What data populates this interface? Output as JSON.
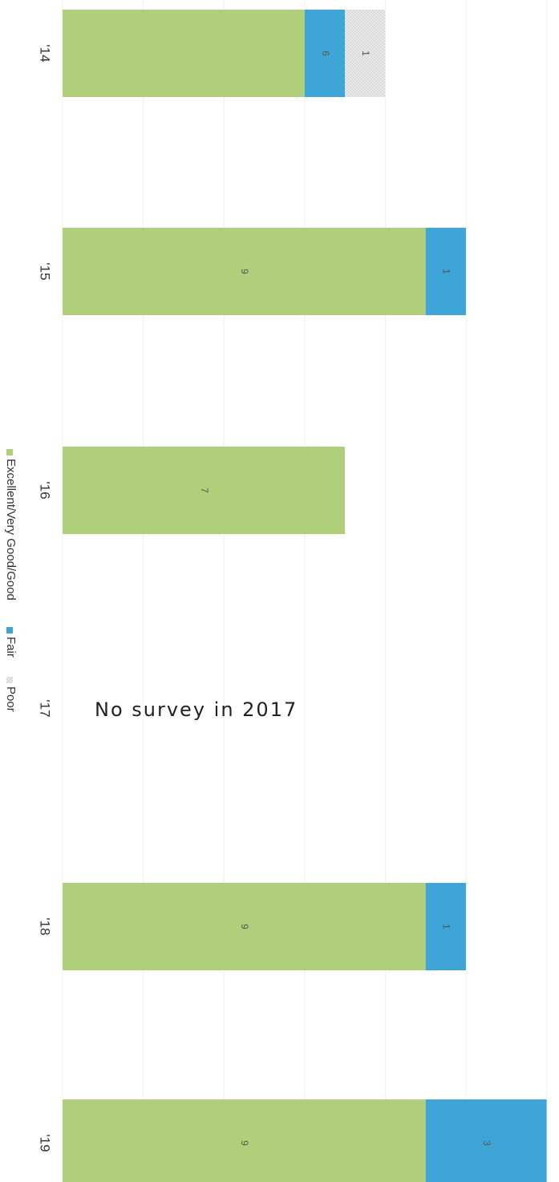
{
  "chart_data": {
    "type": "bar",
    "orientation": "horizontal",
    "stacked": true,
    "rotated": "page rotated 90 degrees clockwise",
    "categories": [
      "'14",
      "'15",
      "'16",
      "'17",
      "'18",
      "'19"
    ],
    "series": [
      {
        "name": "Excellent/Very Good/Good",
        "color": "#b0cf7a",
        "values": [
          6,
          9,
          7,
          null,
          9,
          9
        ]
      },
      {
        "name": "Fair",
        "color": "#3fa5d6",
        "values": [
          1,
          1,
          null,
          null,
          1,
          3
        ]
      },
      {
        "name": "Poor",
        "color": "#e2e2e2",
        "values": [
          1,
          null,
          null,
          null,
          null,
          null
        ]
      }
    ],
    "data_labels": [
      [
        "",
        "6",
        "1",
        "1"
      ],
      [
        "9",
        "1"
      ],
      [
        "7"
      ],
      [],
      [
        "9",
        "1"
      ],
      [
        "9",
        "3"
      ]
    ],
    "annotation": "No survey in 2017",
    "xlim": [
      0,
      12
    ],
    "grid": true,
    "legend_position": "left"
  }
}
